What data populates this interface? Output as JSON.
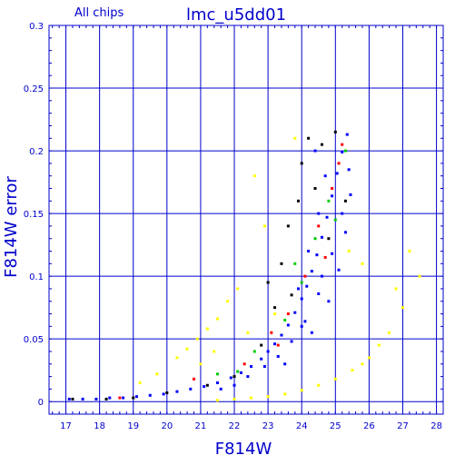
{
  "chart_data": {
    "type": "scatter",
    "title": "lmc_u5dd01",
    "subtitle": "All chips",
    "xlabel": "F814W",
    "ylabel": "F814W error",
    "xlim": [
      16.5,
      28.2
    ],
    "ylim": [
      -0.01,
      0.3
    ],
    "grid": true,
    "x_ticks": [
      "17",
      "18",
      "19",
      "20",
      "21",
      "22",
      "23",
      "24",
      "25",
      "26",
      "27",
      "28"
    ],
    "y_ticks": [
      "0",
      "0.05",
      "0.1",
      "0.15",
      "0.2",
      "0.25",
      "0.3"
    ],
    "x_tick_values": [
      17,
      18,
      19,
      20,
      21,
      22,
      23,
      24,
      25,
      26,
      27,
      28
    ],
    "y_tick_values": [
      0,
      0.05,
      0.1,
      0.15,
      0.2,
      0.25,
      0.3
    ],
    "series": [
      {
        "color": "#0000ff",
        "points": [
          [
            17.1,
            0.002
          ],
          [
            17.5,
            0.002
          ],
          [
            17.9,
            0.002
          ],
          [
            18.3,
            0.003
          ],
          [
            18.7,
            0.003
          ],
          [
            19.1,
            0.004
          ],
          [
            19.5,
            0.005
          ],
          [
            19.9,
            0.006
          ],
          [
            20.3,
            0.008
          ],
          [
            20.7,
            0.01
          ],
          [
            21.1,
            0.012
          ],
          [
            21.5,
            0.015
          ],
          [
            21.9,
            0.019
          ],
          [
            22.2,
            0.023
          ],
          [
            22.5,
            0.028
          ],
          [
            22.8,
            0.034
          ],
          [
            23.0,
            0.04
          ],
          [
            23.2,
            0.046
          ],
          [
            23.4,
            0.053
          ],
          [
            23.6,
            0.061
          ],
          [
            23.8,
            0.071
          ],
          [
            24.0,
            0.082
          ],
          [
            24.15,
            0.092
          ],
          [
            24.3,
            0.104
          ],
          [
            24.45,
            0.117
          ],
          [
            24.6,
            0.131
          ],
          [
            24.75,
            0.147
          ],
          [
            24.9,
            0.164
          ],
          [
            25.05,
            0.182
          ],
          [
            25.2,
            0.199
          ],
          [
            25.35,
            0.213
          ],
          [
            22.4,
            0.02
          ],
          [
            22.9,
            0.028
          ],
          [
            23.3,
            0.036
          ],
          [
            23.7,
            0.048
          ],
          [
            24.1,
            0.064
          ],
          [
            24.5,
            0.086
          ],
          [
            24.9,
            0.118
          ],
          [
            25.2,
            0.15
          ],
          [
            25.4,
            0.185
          ],
          [
            21.6,
            0.01
          ],
          [
            22.0,
            0.013
          ],
          [
            23.5,
            0.03
          ],
          [
            24.3,
            0.055
          ],
          [
            24.8,
            0.08
          ],
          [
            25.1,
            0.105
          ],
          [
            25.3,
            0.135
          ],
          [
            25.45,
            0.165
          ],
          [
            24.6,
            0.1
          ],
          [
            24.0,
            0.06
          ],
          [
            23.9,
            0.09
          ],
          [
            24.2,
            0.12
          ],
          [
            24.5,
            0.15
          ],
          [
            24.7,
            0.18
          ],
          [
            24.4,
            0.2
          ]
        ]
      },
      {
        "color": "#ffff00",
        "points": [
          [
            20.3,
            0.035
          ],
          [
            20.6,
            0.042
          ],
          [
            20.9,
            0.05
          ],
          [
            21.2,
            0.058
          ],
          [
            21.5,
            0.066
          ],
          [
            21.8,
            0.08
          ],
          [
            22.1,
            0.09
          ],
          [
            21.0,
            0.03
          ],
          [
            21.4,
            0.04
          ],
          [
            22.4,
            0.055
          ],
          [
            21.5,
            0.001
          ],
          [
            22.0,
            0.002
          ],
          [
            22.5,
            0.003
          ],
          [
            23.0,
            0.004
          ],
          [
            23.5,
            0.006
          ],
          [
            24.0,
            0.009
          ],
          [
            24.5,
            0.013
          ],
          [
            25.0,
            0.018
          ],
          [
            25.5,
            0.025
          ],
          [
            25.8,
            0.03
          ],
          [
            26.0,
            0.035
          ],
          [
            26.3,
            0.045
          ],
          [
            26.6,
            0.055
          ],
          [
            27.0,
            0.075
          ],
          [
            27.2,
            0.12
          ],
          [
            27.5,
            0.1
          ],
          [
            26.8,
            0.09
          ],
          [
            22.6,
            0.18
          ],
          [
            22.9,
            0.14
          ],
          [
            23.8,
            0.21
          ],
          [
            25.4,
            0.12
          ],
          [
            25.8,
            0.11
          ],
          [
            19.2,
            0.015
          ],
          [
            19.7,
            0.022
          ],
          [
            23.2,
            0.07
          ]
        ]
      },
      {
        "color": "#000000",
        "points": [
          [
            17.2,
            0.002
          ],
          [
            18.2,
            0.002
          ],
          [
            19.0,
            0.003
          ],
          [
            20.0,
            0.007
          ],
          [
            21.2,
            0.013
          ],
          [
            22.0,
            0.02
          ],
          [
            22.8,
            0.045
          ],
          [
            23.2,
            0.075
          ],
          [
            23.4,
            0.11
          ],
          [
            23.6,
            0.14
          ],
          [
            24.0,
            0.19
          ],
          [
            24.2,
            0.21
          ],
          [
            24.6,
            0.205
          ],
          [
            25.0,
            0.215
          ],
          [
            23.9,
            0.16
          ],
          [
            24.4,
            0.17
          ],
          [
            23.0,
            0.095
          ],
          [
            24.8,
            0.13
          ],
          [
            25.3,
            0.16
          ],
          [
            23.7,
            0.085
          ]
        ]
      },
      {
        "color": "#ff0000",
        "points": [
          [
            20.8,
            0.018
          ],
          [
            22.3,
            0.03
          ],
          [
            23.1,
            0.055
          ],
          [
            23.6,
            0.07
          ],
          [
            24.1,
            0.1
          ],
          [
            24.5,
            0.14
          ],
          [
            24.9,
            0.17
          ],
          [
            25.2,
            0.205
          ],
          [
            23.3,
            0.045
          ],
          [
            24.7,
            0.115
          ],
          [
            18.6,
            0.003
          ],
          [
            25.1,
            0.19
          ]
        ]
      },
      {
        "color": "#00cc00",
        "points": [
          [
            21.5,
            0.022
          ],
          [
            22.6,
            0.04
          ],
          [
            23.5,
            0.065
          ],
          [
            24.0,
            0.095
          ],
          [
            24.4,
            0.13
          ],
          [
            24.8,
            0.16
          ],
          [
            25.3,
            0.2
          ],
          [
            23.8,
            0.11
          ],
          [
            22.1,
            0.024
          ],
          [
            25.0,
            0.145
          ]
        ]
      }
    ]
  }
}
